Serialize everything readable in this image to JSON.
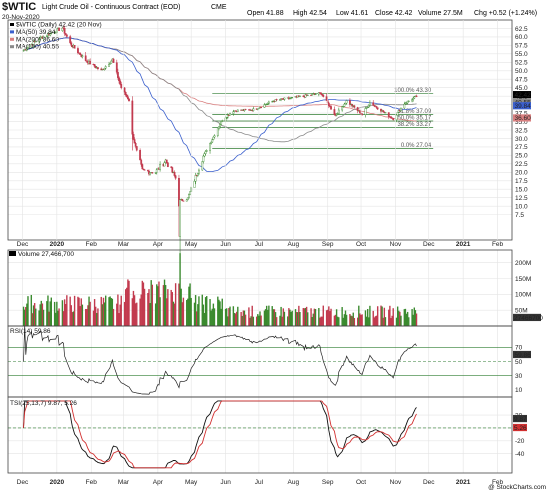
{
  "header": {
    "symbol": "$WTIC",
    "description": "Light Crude Oil - Continuous Contract (EOD)",
    "exchange": "CME",
    "date": "20-Nov-2020",
    "open_label": "Open",
    "open": "41.88",
    "high_label": "High",
    "high": "42.54",
    "low_label": "Low",
    "low": "41.61",
    "close_label": "Close",
    "close": "42.42",
    "volume_label": "Volume",
    "volume": "27.5M",
    "chg_label": "Chg",
    "chg": "+0.52 (+1.24%)",
    "credit": "@ StockCharts.com"
  },
  "chart_data": [
    {
      "type": "candlestick",
      "legend": [
        {
          "name": "$WTIC (Daily) 42.42 (20 Nov)",
          "color": "#000000"
        },
        {
          "name": "MA(50) 39.84",
          "color": "#3a5fcd"
        },
        {
          "name": "MA(200) 36.60",
          "color": "#d98080"
        },
        {
          "name": "MA(100) 40.55",
          "color": "#8a8a8a"
        }
      ],
      "ylim": [
        0,
        65
      ],
      "yticks": [
        7.5,
        10.0,
        12.5,
        15.0,
        17.5,
        20.0,
        22.5,
        25.0,
        27.5,
        30.0,
        32.5,
        35.0,
        37.5,
        40.0,
        42.5,
        45.0,
        47.5,
        50.0,
        52.5,
        55.0,
        57.5,
        60.0,
        62.5
      ],
      "ytick_labels": [
        "7.5",
        "10.0",
        "12.5",
        "15.0",
        "17.5",
        "20.0",
        "22.5",
        "25.0",
        "27.5",
        "30.0",
        "32.5",
        "35.0",
        "37.5",
        "40.0",
        "42.5",
        "45.0",
        "47.5",
        "50.0",
        "52.5",
        "55.0",
        "57.5",
        "60.0",
        "62.5"
      ],
      "fib_levels": [
        {
          "label": "100.0% 43.30",
          "value": 43.3
        },
        {
          "label": "61.8% 37.09",
          "value": 37.09
        },
        {
          "label": "50.0% 35.17",
          "value": 35.17
        },
        {
          "label": "38.2% 33.27",
          "value": 33.27
        },
        {
          "label": "0.0% 27.04",
          "value": 27.04
        }
      ],
      "last_price_tags": [
        {
          "label": "42.42",
          "value": 42.42,
          "color": "#000000"
        },
        {
          "label": "40.55",
          "value": 40.55,
          "color": "#8a8a8a"
        },
        {
          "label": "39.84",
          "value": 39.84,
          "color": "#3a5fcd"
        },
        {
          "label": "36.60",
          "value": 36.6,
          "color": "#d98080"
        }
      ],
      "price_anchors": [
        [
          "2019-12-02",
          56.0
        ],
        [
          "2019-12-16",
          59.5
        ],
        [
          "2020-01-06",
          62.7
        ],
        [
          "2020-01-13",
          58.1
        ],
        [
          "2020-01-27",
          53.1
        ],
        [
          "2020-02-10",
          50.0
        ],
        [
          "2020-02-20",
          53.3
        ],
        [
          "2020-02-28",
          45.0
        ],
        [
          "2020-03-06",
          41.3
        ],
        [
          "2020-03-09",
          31.1
        ],
        [
          "2020-03-18",
          20.4
        ],
        [
          "2020-03-30",
          20.1
        ],
        [
          "2020-04-08",
          23.5
        ],
        [
          "2020-04-17",
          18.3
        ],
        [
          "2020-04-20",
          1.0
        ],
        [
          "2020-04-21",
          11.6
        ],
        [
          "2020-04-28",
          12.3
        ],
        [
          "2020-05-11",
          24.1
        ],
        [
          "2020-05-29",
          35.5
        ],
        [
          "2020-06-08",
          38.2
        ],
        [
          "2020-06-26",
          38.5
        ],
        [
          "2020-07-15",
          41.2
        ],
        [
          "2020-08-05",
          42.2
        ],
        [
          "2020-08-26",
          43.4
        ],
        [
          "2020-09-08",
          36.8
        ],
        [
          "2020-09-18",
          41.1
        ],
        [
          "2020-10-02",
          37.1
        ],
        [
          "2020-10-09",
          40.6
        ],
        [
          "2020-10-30",
          35.8
        ],
        [
          "2020-11-09",
          40.3
        ],
        [
          "2020-11-20",
          42.4
        ]
      ]
    },
    {
      "type": "bar",
      "title": "Volume 27,466,700",
      "ytick_labels": [
        "200M",
        "150M",
        "100M",
        "50M"
      ],
      "yticks": [
        200,
        150,
        100,
        50
      ],
      "ylim": [
        0,
        240
      ],
      "last_value_label": "27466700",
      "bar_colors": {
        "up": "#3a8a2e",
        "down": "#c23a4e"
      }
    },
    {
      "type": "line",
      "title": "RSI(14) 59.86",
      "ylim": [
        0,
        100
      ],
      "yticks": [
        70,
        50,
        30,
        10
      ],
      "ytick_labels": [
        "70",
        "50",
        "30",
        "10"
      ],
      "overbought": 70,
      "oversold": 30,
      "midline": 50,
      "last_value_label": "59.86"
    },
    {
      "type": "line",
      "title": "TSI(25,13,7) 9.87, 5.26",
      "series": [
        {
          "name": "TSI",
          "color": "#111111"
        },
        {
          "name": "Signal",
          "color": "#d23030"
        }
      ],
      "ylim": [
        -70,
        48
      ],
      "yticks": [
        20,
        0,
        -20,
        -40
      ],
      "ytick_labels": [
        "20",
        "0",
        "-20",
        "-40"
      ],
      "last_value_labels": [
        "9.87",
        "5.26"
      ]
    }
  ],
  "x_axis": {
    "start": "2019-11-18",
    "end": "2021-02-14",
    "months": [
      {
        "label": "Dec",
        "date": "2019-12-01",
        "bold": false
      },
      {
        "label": "2020",
        "date": "2020-01-01",
        "bold": true
      },
      {
        "label": "Feb",
        "date": "2020-02-01",
        "bold": false
      },
      {
        "label": "Mar",
        "date": "2020-03-01",
        "bold": false
      },
      {
        "label": "Apr",
        "date": "2020-04-01",
        "bold": false
      },
      {
        "label": "May",
        "date": "2020-05-01",
        "bold": false
      },
      {
        "label": "Jun",
        "date": "2020-06-01",
        "bold": false
      },
      {
        "label": "Jul",
        "date": "2020-07-01",
        "bold": false
      },
      {
        "label": "Aug",
        "date": "2020-08-01",
        "bold": false
      },
      {
        "label": "Sep",
        "date": "2020-09-01",
        "bold": false
      },
      {
        "label": "Oct",
        "date": "2020-10-01",
        "bold": false
      },
      {
        "label": "Nov",
        "date": "2020-11-01",
        "bold": false
      },
      {
        "label": "Dec",
        "date": "2020-12-01",
        "bold": false
      },
      {
        "label": "2021",
        "date": "2021-01-01",
        "bold": true
      },
      {
        "label": "Feb",
        "date": "2021-02-01",
        "bold": false
      }
    ]
  },
  "colors": {
    "up": "#3a8a2e",
    "down": "#c23a4e",
    "ma50": "#3a5fcd",
    "ma200": "#d98080",
    "ma100": "#8a8a8a",
    "fib": "#2f7d32"
  }
}
